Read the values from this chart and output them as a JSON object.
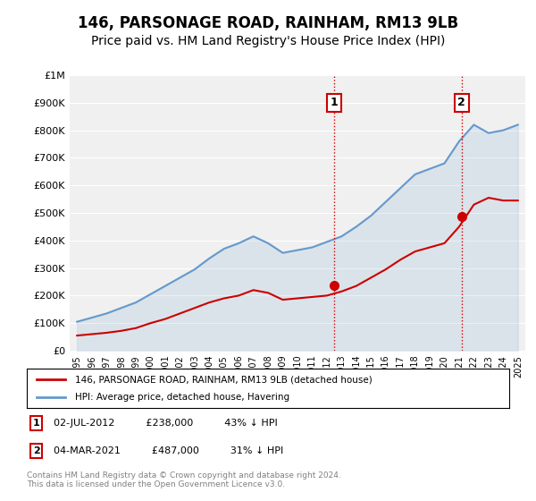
{
  "title": "146, PARSONAGE ROAD, RAINHAM, RM13 9LB",
  "subtitle": "Price paid vs. HM Land Registry's House Price Index (HPI)",
  "xlabel": "",
  "ylabel": "",
  "ylim": [
    0,
    1000000
  ],
  "xlim_start": 1995,
  "xlim_end": 2026,
  "yticks": [
    0,
    100000,
    200000,
    300000,
    400000,
    500000,
    600000,
    700000,
    800000,
    900000,
    1000000
  ],
  "ytick_labels": [
    "£0",
    "£100K",
    "£200K",
    "£300K",
    "£400K",
    "£500K",
    "£600K",
    "£700K",
    "£800K",
    "£900K",
    "£1M"
  ],
  "xtick_labels": [
    "1995",
    "1996",
    "1997",
    "1998",
    "1999",
    "2000",
    "2001",
    "2002",
    "2003",
    "2004",
    "2005",
    "2006",
    "2007",
    "2008",
    "2009",
    "2010",
    "2011",
    "2012",
    "2013",
    "2014",
    "2015",
    "2016",
    "2017",
    "2018",
    "2019",
    "2020",
    "2021",
    "2022",
    "2023",
    "2024",
    "2025"
  ],
  "hpi_color": "#6699cc",
  "price_color": "#cc0000",
  "vline_color": "#cc0000",
  "vline_style": "dotted",
  "sale1_x": 2012.5,
  "sale1_y": 238000,
  "sale1_label": "1",
  "sale2_x": 2021.17,
  "sale2_y": 487000,
  "sale2_label": "2",
  "legend_property": "146, PARSONAGE ROAD, RAINHAM, RM13 9LB (detached house)",
  "legend_hpi": "HPI: Average price, detached house, Havering",
  "footnote1": "1     02-JUL-2012          £238,000          43% ↓ HPI",
  "footnote2": "2     04-MAR-2021          £487,000          31% ↓ HPI",
  "copyright": "Contains HM Land Registry data © Crown copyright and database right 2024.\nThis data is licensed under the Open Government Licence v3.0.",
  "background_color": "#ffffff",
  "plot_bg_color": "#f0f0f0",
  "title_fontsize": 12,
  "subtitle_fontsize": 10,
  "hpi_x": [
    1995,
    1996,
    1997,
    1998,
    1999,
    2000,
    2001,
    2002,
    2003,
    2004,
    2005,
    2006,
    2007,
    2008,
    2009,
    2010,
    2011,
    2012,
    2013,
    2014,
    2015,
    2016,
    2017,
    2018,
    2019,
    2020,
    2021,
    2022,
    2023,
    2024,
    2025
  ],
  "hpi_y": [
    105000,
    120000,
    135000,
    155000,
    175000,
    205000,
    235000,
    265000,
    295000,
    335000,
    370000,
    390000,
    415000,
    390000,
    355000,
    365000,
    375000,
    395000,
    415000,
    450000,
    490000,
    540000,
    590000,
    640000,
    660000,
    680000,
    760000,
    820000,
    790000,
    800000,
    820000
  ],
  "price_x": [
    1995,
    1996,
    1997,
    1998,
    1999,
    2000,
    2001,
    2002,
    2003,
    2004,
    2005,
    2006,
    2007,
    2008,
    2009,
    2010,
    2011,
    2012,
    2013,
    2014,
    2015,
    2016,
    2017,
    2018,
    2019,
    2020,
    2021,
    2022,
    2023,
    2024,
    2025
  ],
  "price_y": [
    55000,
    60000,
    65000,
    72000,
    82000,
    100000,
    115000,
    135000,
    155000,
    175000,
    190000,
    200000,
    220000,
    210000,
    185000,
    190000,
    195000,
    200000,
    215000,
    235000,
    265000,
    295000,
    330000,
    360000,
    375000,
    390000,
    450000,
    530000,
    555000,
    545000,
    545000
  ]
}
